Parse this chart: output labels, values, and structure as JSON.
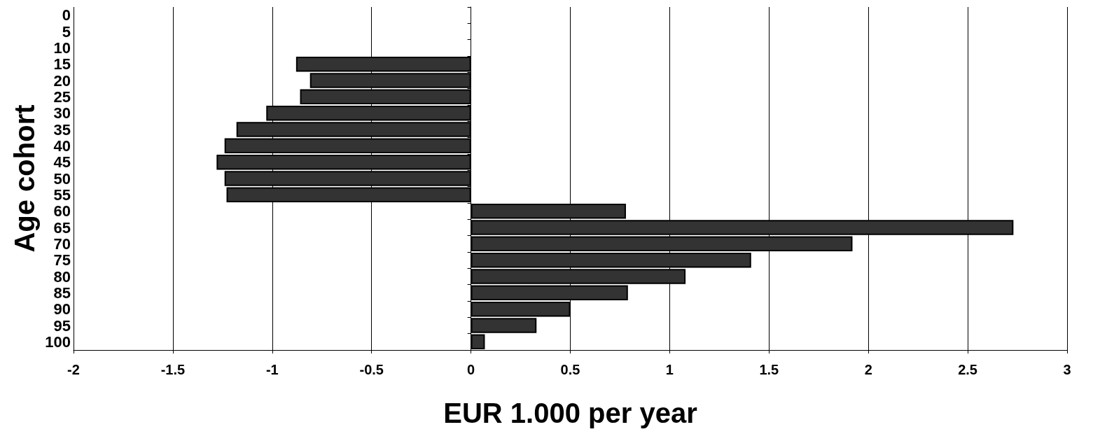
{
  "chart_data": {
    "type": "bar",
    "orientation": "horizontal",
    "xlabel": "EUR 1.000 per year",
    "ylabel": "Age cohort",
    "categories": [
      "0",
      "5",
      "10",
      "15",
      "20",
      "25",
      "30",
      "35",
      "40",
      "45",
      "50",
      "55",
      "60",
      "65",
      "70",
      "75",
      "80",
      "85",
      "90",
      "95",
      "100"
    ],
    "values": [
      null,
      null,
      null,
      -0.88,
      -0.81,
      -0.86,
      -1.03,
      -1.18,
      -1.24,
      -1.28,
      -1.24,
      -1.23,
      0.78,
      2.73,
      1.92,
      1.41,
      1.08,
      0.79,
      0.5,
      0.33,
      0.07
    ],
    "color": "#333333",
    "xlim": [
      -2,
      3
    ],
    "xticks": [
      -2,
      -1.5,
      -1,
      -0.5,
      0,
      0.5,
      1,
      1.5,
      2,
      2.5,
      3
    ],
    "grid": "x"
  }
}
